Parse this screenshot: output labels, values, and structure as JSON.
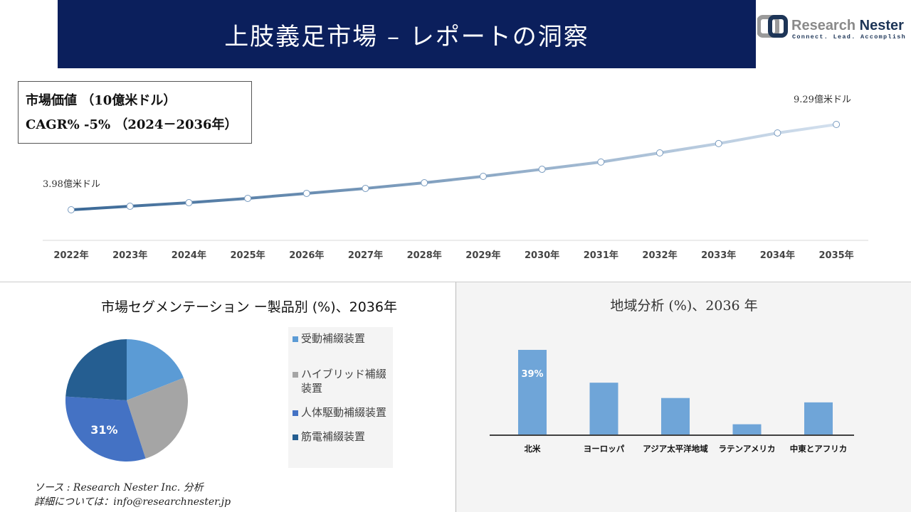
{
  "header": {
    "title": "上肢義足市場 – レポートの洞察"
  },
  "logo": {
    "name": "Research Nester",
    "tagline": "Connect. Lead. Accomplish"
  },
  "infobox": {
    "line1": "市場価値 （10億米ドル）",
    "line2": "CAGR% -5% （2024－2036年）"
  },
  "colors": {
    "banner": "#0b1f5c",
    "bar": "#6fa5d8"
  },
  "chart_data": [
    {
      "type": "line",
      "x": [
        "2022年",
        "2023年",
        "2024年",
        "2025年",
        "2026年",
        "2027年",
        "2028年",
        "2029年",
        "2030年",
        "2031年",
        "2032年",
        "2033年",
        "2034年",
        "2035年"
      ],
      "values": [
        3.98,
        4.2,
        4.42,
        4.69,
        5.0,
        5.31,
        5.66,
        6.06,
        6.5,
        6.95,
        7.52,
        8.1,
        8.76,
        9.29
      ],
      "annotations": {
        "first": "3.98億米ドル",
        "last": "9.29億米ドル"
      }
    },
    {
      "type": "pie",
      "title": "市場セグメンテーション ー製品別 (%)、2036年",
      "categories": [
        "受動補綴装置",
        "ハイブリッド補綴装置",
        "人体駆動補綴装置",
        "筋電補綴装置"
      ],
      "values": [
        19,
        26,
        31,
        24
      ],
      "colors": [
        "#5b9bd5",
        "#a5a5a5",
        "#4472c4",
        "#255e91"
      ],
      "labels": [
        "",
        "",
        "31%",
        ""
      ]
    },
    {
      "type": "bar",
      "title": "地域分析 (%)、2036 年",
      "categories": [
        "北米",
        "ヨーロッパ",
        "アジア太平洋地域",
        "ラテンアメリカ",
        "中東とアフリカ"
      ],
      "values": [
        39,
        24,
        17,
        5,
        15
      ],
      "labels": [
        "39%",
        "",
        "",
        "",
        ""
      ]
    }
  ],
  "source": {
    "line1": "ソース : Research Nester Inc. 分析",
    "line2": "詳細については：info@researchnester.jp"
  }
}
